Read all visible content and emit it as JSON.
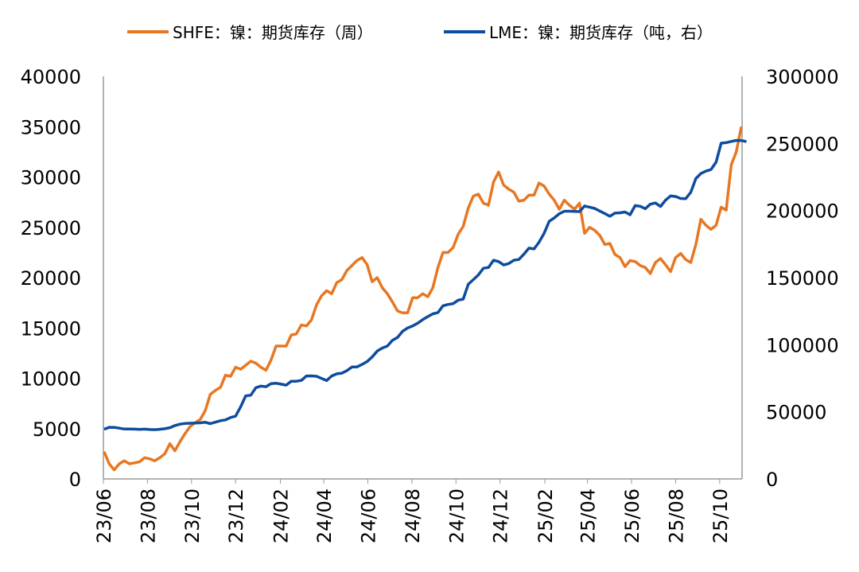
{
  "chart_data": {
    "type": "line",
    "title": "",
    "xlabel": "",
    "ylabel": "",
    "legend_position": "top-center",
    "grid": false,
    "x_tick_labels": [
      "23/06",
      "23/08",
      "23/10",
      "23/12",
      "24/02",
      "24/04",
      "24/06",
      "24/08",
      "24/10",
      "24/12",
      "25/02",
      "25/04",
      "25/06",
      "25/08",
      "25/10"
    ],
    "x_range": [
      "2023-06",
      "2025-11"
    ],
    "y_left": {
      "range": [
        0,
        40000
      ],
      "ticks": [
        "0",
        "5000",
        "10000",
        "15000",
        "20000",
        "25000",
        "30000",
        "35000",
        "40000"
      ]
    },
    "y_right": {
      "range": [
        0,
        300000
      ],
      "ticks": [
        "0",
        "50000",
        "100000",
        "150000",
        "200000",
        "250000",
        "300000"
      ]
    },
    "series": [
      {
        "name": "SHFE：镍：期货库存（周）",
        "color": "#E87722",
        "axis": "left",
        "points": [
          [
            "2023-06-02",
            2700
          ],
          [
            "2023-06-09",
            1500
          ],
          [
            "2023-06-16",
            900
          ],
          [
            "2023-06-23",
            1500
          ],
          [
            "2023-06-30",
            1800
          ],
          [
            "2023-07-07",
            1500
          ],
          [
            "2023-07-14",
            1600
          ],
          [
            "2023-07-21",
            1700
          ],
          [
            "2023-07-28",
            2100
          ],
          [
            "2023-08-04",
            2000
          ],
          [
            "2023-08-11",
            1800
          ],
          [
            "2023-08-18",
            2100
          ],
          [
            "2023-08-25",
            2500
          ],
          [
            "2023-09-01",
            3500
          ],
          [
            "2023-09-08",
            2800
          ],
          [
            "2023-09-15",
            3700
          ],
          [
            "2023-09-22",
            4500
          ],
          [
            "2023-09-29",
            5200
          ],
          [
            "2023-10-06",
            5600
          ],
          [
            "2023-10-13",
            5900
          ],
          [
            "2023-10-20",
            6800
          ],
          [
            "2023-10-27",
            8400
          ],
          [
            "2023-11-03",
            8800
          ],
          [
            "2023-11-10",
            9100
          ],
          [
            "2023-11-17",
            10300
          ],
          [
            "2023-11-24",
            10200
          ],
          [
            "2023-12-01",
            11100
          ],
          [
            "2023-12-08",
            10900
          ],
          [
            "2023-12-15",
            11300
          ],
          [
            "2023-12-22",
            11700
          ],
          [
            "2023-12-29",
            11500
          ],
          [
            "2024-01-05",
            11100
          ],
          [
            "2024-01-12",
            10800
          ],
          [
            "2024-01-19",
            11800
          ],
          [
            "2024-01-26",
            13200
          ],
          [
            "2024-02-02",
            13200
          ],
          [
            "2024-02-09",
            13200
          ],
          [
            "2024-02-16",
            14300
          ],
          [
            "2024-02-23",
            14400
          ],
          [
            "2024-03-01",
            15300
          ],
          [
            "2024-03-08",
            15200
          ],
          [
            "2024-03-15",
            15800
          ],
          [
            "2024-03-22",
            17300
          ],
          [
            "2024-03-29",
            18200
          ],
          [
            "2024-04-05",
            18700
          ],
          [
            "2024-04-12",
            18400
          ],
          [
            "2024-04-19",
            19500
          ],
          [
            "2024-04-26",
            19800
          ],
          [
            "2024-05-03",
            20700
          ],
          [
            "2024-05-10",
            21200
          ],
          [
            "2024-05-17",
            21700
          ],
          [
            "2024-05-24",
            22000
          ],
          [
            "2024-05-31",
            21300
          ],
          [
            "2024-06-07",
            19600
          ],
          [
            "2024-06-14",
            20000
          ],
          [
            "2024-06-21",
            19000
          ],
          [
            "2024-06-28",
            18400
          ],
          [
            "2024-07-05",
            17600
          ],
          [
            "2024-07-12",
            16700
          ],
          [
            "2024-07-19",
            16500
          ],
          [
            "2024-07-26",
            16500
          ],
          [
            "2024-08-02",
            18000
          ],
          [
            "2024-08-09",
            18000
          ],
          [
            "2024-08-16",
            18400
          ],
          [
            "2024-08-23",
            18100
          ],
          [
            "2024-08-30",
            19000
          ],
          [
            "2024-09-06",
            21000
          ],
          [
            "2024-09-13",
            22500
          ],
          [
            "2024-09-20",
            22500
          ],
          [
            "2024-09-27",
            23000
          ],
          [
            "2024-10-04",
            24300
          ],
          [
            "2024-10-11",
            25100
          ],
          [
            "2024-10-18",
            26900
          ],
          [
            "2024-10-25",
            28100
          ],
          [
            "2024-11-01",
            28300
          ],
          [
            "2024-11-08",
            27400
          ],
          [
            "2024-11-15",
            27200
          ],
          [
            "2024-11-22",
            29500
          ],
          [
            "2024-11-29",
            30500
          ],
          [
            "2024-12-06",
            29200
          ],
          [
            "2024-12-13",
            28800
          ],
          [
            "2024-12-20",
            28500
          ],
          [
            "2024-12-27",
            27600
          ],
          [
            "2025-01-03",
            27700
          ],
          [
            "2025-01-10",
            28200
          ],
          [
            "2025-01-17",
            28200
          ],
          [
            "2025-01-24",
            29400
          ],
          [
            "2025-01-31",
            29100
          ],
          [
            "2025-02-07",
            28300
          ],
          [
            "2025-02-14",
            27700
          ],
          [
            "2025-02-21",
            26800
          ],
          [
            "2025-02-28",
            27700
          ],
          [
            "2025-03-07",
            27200
          ],
          [
            "2025-03-14",
            26800
          ],
          [
            "2025-03-21",
            27400
          ],
          [
            "2025-03-28",
            24400
          ],
          [
            "2025-04-04",
            25000
          ],
          [
            "2025-04-11",
            24700
          ],
          [
            "2025-04-18",
            24200
          ],
          [
            "2025-04-25",
            23300
          ],
          [
            "2025-05-02",
            23400
          ],
          [
            "2025-05-09",
            22300
          ],
          [
            "2025-05-16",
            22000
          ],
          [
            "2025-05-23",
            21100
          ],
          [
            "2025-05-30",
            21700
          ],
          [
            "2025-06-06",
            21600
          ],
          [
            "2025-06-13",
            21200
          ],
          [
            "2025-06-20",
            21000
          ],
          [
            "2025-06-27",
            20400
          ],
          [
            "2025-07-04",
            21500
          ],
          [
            "2025-07-11",
            21900
          ],
          [
            "2025-07-18",
            21300
          ],
          [
            "2025-07-25",
            20600
          ],
          [
            "2025-08-01",
            22000
          ],
          [
            "2025-08-08",
            22400
          ],
          [
            "2025-08-15",
            21800
          ],
          [
            "2025-08-22",
            21500
          ],
          [
            "2025-08-29",
            23300
          ],
          [
            "2025-09-05",
            25800
          ],
          [
            "2025-09-12",
            25200
          ],
          [
            "2025-09-19",
            24800
          ],
          [
            "2025-09-26",
            25200
          ],
          [
            "2025-10-03",
            27000
          ],
          [
            "2025-10-10",
            26700
          ],
          [
            "2025-10-17",
            31200
          ],
          [
            "2025-10-24",
            32500
          ],
          [
            "2025-10-31",
            35000
          ]
        ]
      },
      {
        "name": "LME：镍：期货库存（吨，右）",
        "color": "#0E4C9E",
        "axis": "right",
        "points": [
          [
            "2023-06-02",
            37000
          ],
          [
            "2023-06-09",
            38500
          ],
          [
            "2023-06-16",
            38400
          ],
          [
            "2023-06-23",
            37800
          ],
          [
            "2023-06-30",
            37200
          ],
          [
            "2023-07-07",
            37200
          ],
          [
            "2023-07-14",
            37100
          ],
          [
            "2023-07-21",
            36900
          ],
          [
            "2023-07-28",
            37100
          ],
          [
            "2023-08-04",
            36800
          ],
          [
            "2023-08-11",
            36700
          ],
          [
            "2023-08-18",
            37000
          ],
          [
            "2023-08-25",
            37400
          ],
          [
            "2023-09-01",
            38200
          ],
          [
            "2023-09-08",
            39800
          ],
          [
            "2023-09-15",
            40800
          ],
          [
            "2023-09-22",
            41300
          ],
          [
            "2023-09-29",
            41500
          ],
          [
            "2023-10-06",
            41600
          ],
          [
            "2023-10-13",
            41800
          ],
          [
            "2023-10-20",
            42200
          ],
          [
            "2023-10-27",
            41200
          ],
          [
            "2023-11-03",
            42300
          ],
          [
            "2023-11-10",
            43400
          ],
          [
            "2023-11-17",
            44000
          ],
          [
            "2023-11-24",
            45800
          ],
          [
            "2023-12-01",
            46800
          ],
          [
            "2023-12-08",
            53800
          ],
          [
            "2023-12-15",
            61900
          ],
          [
            "2023-12-22",
            62400
          ],
          [
            "2023-12-29",
            68000
          ],
          [
            "2024-01-05",
            69200
          ],
          [
            "2024-01-12",
            68700
          ],
          [
            "2024-01-19",
            71000
          ],
          [
            "2024-01-26",
            71300
          ],
          [
            "2024-02-02",
            70600
          ],
          [
            "2024-02-09",
            69900
          ],
          [
            "2024-02-16",
            72800
          ],
          [
            "2024-02-23",
            72800
          ],
          [
            "2024-03-01",
            73400
          ],
          [
            "2024-03-08",
            76700
          ],
          [
            "2024-03-15",
            76800
          ],
          [
            "2024-03-22",
            76500
          ],
          [
            "2024-03-29",
            74900
          ],
          [
            "2024-04-05",
            73300
          ],
          [
            "2024-04-12",
            76700
          ],
          [
            "2024-04-19",
            78300
          ],
          [
            "2024-04-26",
            78800
          ],
          [
            "2024-05-03",
            80700
          ],
          [
            "2024-05-10",
            83400
          ],
          [
            "2024-05-17",
            83500
          ],
          [
            "2024-05-24",
            85300
          ],
          [
            "2024-05-31",
            87500
          ],
          [
            "2024-06-07",
            90900
          ],
          [
            "2024-06-14",
            95300
          ],
          [
            "2024-06-21",
            97500
          ],
          [
            "2024-06-28",
            99000
          ],
          [
            "2024-07-05",
            103200
          ],
          [
            "2024-07-12",
            105400
          ],
          [
            "2024-07-19",
            110000
          ],
          [
            "2024-07-26",
            112500
          ],
          [
            "2024-08-02",
            114000
          ],
          [
            "2024-08-09",
            116000
          ],
          [
            "2024-08-16",
            118700
          ],
          [
            "2024-08-23",
            121000
          ],
          [
            "2024-08-30",
            123000
          ],
          [
            "2024-09-06",
            124000
          ],
          [
            "2024-09-13",
            129000
          ],
          [
            "2024-09-20",
            130000
          ],
          [
            "2024-09-27",
            130600
          ],
          [
            "2024-10-04",
            133200
          ],
          [
            "2024-10-11",
            134000
          ],
          [
            "2024-10-18",
            145000
          ],
          [
            "2024-10-25",
            148500
          ],
          [
            "2024-11-01",
            152000
          ],
          [
            "2024-11-08",
            157000
          ],
          [
            "2024-11-15",
            157600
          ],
          [
            "2024-11-22",
            163000
          ],
          [
            "2024-11-29",
            162000
          ],
          [
            "2024-12-06",
            159500
          ],
          [
            "2024-12-13",
            160500
          ],
          [
            "2024-12-20",
            163000
          ],
          [
            "2024-12-27",
            163500
          ],
          [
            "2025-01-03",
            167500
          ],
          [
            "2025-01-10",
            172000
          ],
          [
            "2025-01-17",
            171400
          ],
          [
            "2025-01-24",
            176400
          ],
          [
            "2025-01-31",
            183000
          ],
          [
            "2025-02-07",
            192000
          ],
          [
            "2025-02-14",
            194500
          ],
          [
            "2025-02-21",
            197600
          ],
          [
            "2025-02-28",
            199500
          ],
          [
            "2025-03-07",
            199500
          ],
          [
            "2025-03-14",
            199300
          ],
          [
            "2025-03-21",
            199200
          ],
          [
            "2025-03-28",
            203400
          ],
          [
            "2025-04-04",
            202500
          ],
          [
            "2025-04-11",
            201600
          ],
          [
            "2025-04-18",
            199600
          ],
          [
            "2025-04-25",
            197800
          ],
          [
            "2025-05-02",
            195700
          ],
          [
            "2025-05-09",
            198100
          ],
          [
            "2025-05-16",
            198300
          ],
          [
            "2025-05-23",
            198900
          ],
          [
            "2025-05-30",
            196900
          ],
          [
            "2025-06-06",
            203700
          ],
          [
            "2025-06-13",
            203200
          ],
          [
            "2025-06-20",
            201400
          ],
          [
            "2025-06-27",
            204700
          ],
          [
            "2025-07-04",
            205700
          ],
          [
            "2025-07-11",
            203000
          ],
          [
            "2025-07-18",
            207700
          ],
          [
            "2025-07-25",
            210900
          ],
          [
            "2025-08-01",
            210500
          ],
          [
            "2025-08-08",
            209000
          ],
          [
            "2025-08-15",
            208800
          ],
          [
            "2025-08-22",
            213600
          ],
          [
            "2025-08-29",
            223900
          ],
          [
            "2025-09-05",
            227600
          ],
          [
            "2025-09-12",
            229400
          ],
          [
            "2025-09-19",
            230600
          ],
          [
            "2025-09-26",
            236000
          ],
          [
            "2025-10-03",
            250200
          ],
          [
            "2025-10-10",
            250600
          ],
          [
            "2025-10-17",
            251500
          ],
          [
            "2025-10-24",
            252300
          ],
          [
            "2025-10-31",
            252200
          ],
          [
            "2025-11-07",
            251300
          ]
        ]
      }
    ]
  }
}
